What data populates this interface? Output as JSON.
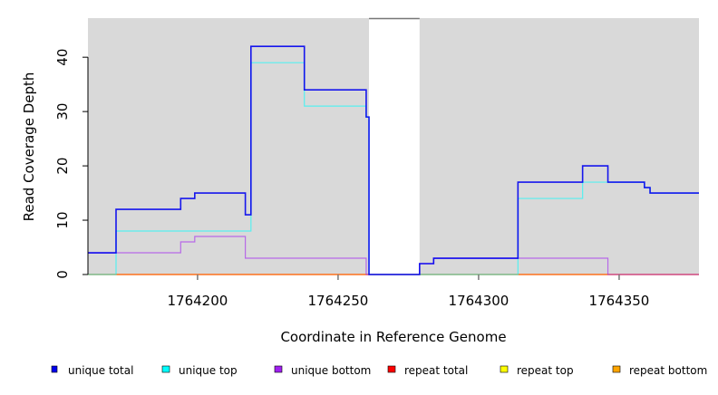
{
  "chart_data": {
    "type": "line",
    "step": true,
    "title": "",
    "xlabel": "Coordinate in Reference Genome",
    "ylabel": "Read Coverage Depth",
    "xlim": [
      1764161,
      1764378.4
    ],
    "ylim": [
      0,
      47.2
    ],
    "xticks": [
      1764200,
      1764250,
      1764300,
      1764350
    ],
    "yticks": [
      0,
      10,
      20,
      30,
      40
    ],
    "background_color": "#d9d9d9",
    "gap_region": [
      1764261,
      1764279
    ],
    "legend_position": "bottom",
    "series": [
      {
        "name": "unique total",
        "color": "#0000ee",
        "steps": [
          [
            1764161,
            4
          ],
          [
            1764171,
            12
          ],
          [
            1764194,
            14
          ],
          [
            1764199,
            15
          ],
          [
            1764217,
            11
          ],
          [
            1764219,
            42
          ],
          [
            1764238,
            34
          ],
          [
            1764260,
            29
          ],
          [
            1764261,
            0
          ],
          [
            1764279,
            2
          ],
          [
            1764284,
            3
          ],
          [
            1764314,
            17
          ],
          [
            1764337,
            20
          ],
          [
            1764346,
            17
          ],
          [
            1764359,
            16
          ],
          [
            1764361,
            15
          ]
        ]
      },
      {
        "name": "unique top",
        "color": "#00ffff",
        "steps": [
          [
            1764161,
            0
          ],
          [
            1764171,
            8
          ],
          [
            1764219,
            39
          ],
          [
            1764238,
            31
          ],
          [
            1764260,
            29
          ],
          [
            1764261,
            0
          ],
          [
            1764314,
            14
          ],
          [
            1764337,
            17
          ],
          [
            1764359,
            16
          ],
          [
            1764361,
            15
          ]
        ]
      },
      {
        "name": "unique bottom",
        "color": "#a020f0",
        "steps": [
          [
            1764161,
            4
          ],
          [
            1764194,
            6
          ],
          [
            1764199,
            7
          ],
          [
            1764217,
            3
          ],
          [
            1764260,
            0
          ],
          [
            1764279,
            2
          ],
          [
            1764284,
            3
          ],
          [
            1764346,
            0
          ]
        ]
      },
      {
        "name": "repeat total",
        "color": "#ff0000",
        "steps": [
          [
            1764161,
            0
          ]
        ]
      },
      {
        "name": "repeat top",
        "color": "#ffff00",
        "steps": [
          [
            1764161,
            0
          ]
        ]
      },
      {
        "name": "repeat bottom",
        "color": "#ffa500",
        "steps": [
          [
            1764161,
            0
          ]
        ]
      }
    ]
  }
}
